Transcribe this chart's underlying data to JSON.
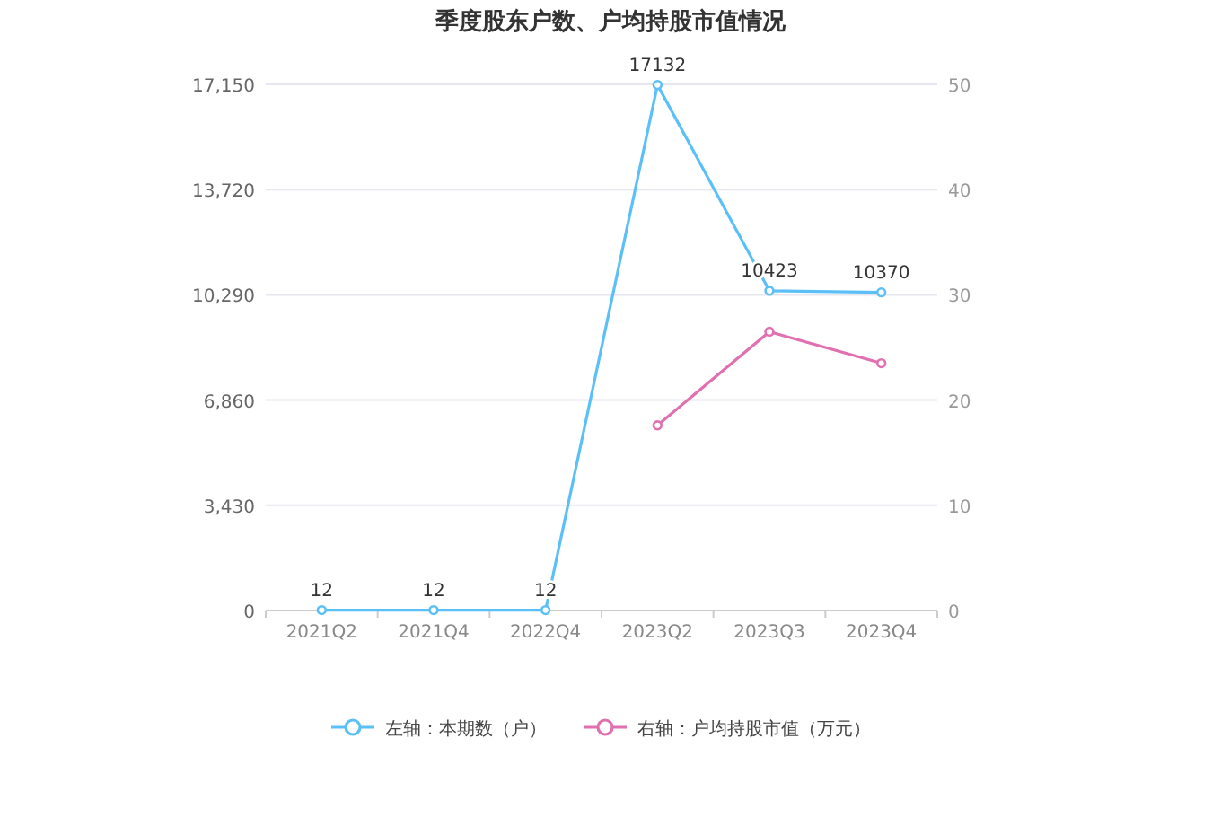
{
  "chart_data": {
    "type": "line",
    "title": "季度股东户数、户均持股市值情况",
    "categories": [
      "2021Q2",
      "2021Q4",
      "2022Q4",
      "2023Q2",
      "2023Q3",
      "2023Q4"
    ],
    "series": [
      {
        "name": "左轴：本期数（户）",
        "color": "#5bc0f8",
        "values": [
          12,
          12,
          12,
          17132,
          10423,
          10370
        ],
        "value_labels": [
          "12",
          "12",
          "12",
          "17132",
          "10423",
          "10370"
        ]
      },
      {
        "name": "右轴：户均持股市值（万元）",
        "color": "#e070b0",
        "axis": "y2",
        "values": [
          null,
          null,
          null,
          17.6,
          26.5,
          23.5
        ]
      }
    ],
    "ylim": [
      0,
      17150
    ],
    "yticks": [
      {
        "value": 0,
        "label": "0"
      },
      {
        "value": 3430,
        "label": "3,430"
      },
      {
        "value": 6860,
        "label": "6,860"
      },
      {
        "value": 10290,
        "label": "10,290"
      },
      {
        "value": 13720,
        "label": "13,720"
      },
      {
        "value": 17150,
        "label": "17,150"
      }
    ],
    "y2lim": [
      0,
      50
    ],
    "y2ticks": [
      0,
      10,
      20,
      30,
      40,
      50
    ],
    "grid": "y",
    "legend": "bottom",
    "marker": "circle",
    "line_style": "solid"
  }
}
